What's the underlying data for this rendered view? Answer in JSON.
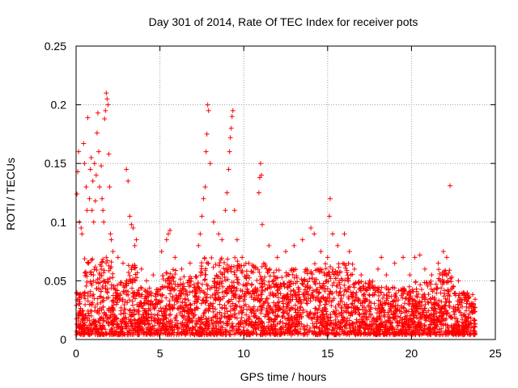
{
  "chart_data": {
    "type": "scatter",
    "title": "Day 301 of 2014, Rate Of TEC Index for receiver pots",
    "xlabel": "GPS time / hours",
    "ylabel": "ROTI / TECUs",
    "xlim": [
      0,
      25
    ],
    "ylim": [
      0,
      0.25
    ],
    "xticks": [
      0,
      5,
      10,
      15,
      20,
      25
    ],
    "xtick_labels": [
      "0",
      "5",
      "10",
      "15",
      "20",
      "25"
    ],
    "yticks": [
      0,
      0.05,
      0.1,
      0.15,
      0.2,
      0.25
    ],
    "ytick_labels": [
      "0",
      "0.05",
      "0.1",
      "0.15",
      "0.2",
      "0.25"
    ],
    "grid": true,
    "marker": "+",
    "color": "#ff0000",
    "series": [
      {
        "name": "ROTI",
        "points": [
          [
            0.05,
            0.124
          ],
          [
            0.1,
            0.143
          ],
          [
            0.15,
            0.16
          ],
          [
            0.2,
            0.1
          ],
          [
            0.3,
            0.095
          ],
          [
            0.35,
            0.09
          ],
          [
            0.45,
            0.167
          ],
          [
            0.5,
            0.15
          ],
          [
            0.6,
            0.13
          ],
          [
            0.65,
            0.11
          ],
          [
            0.7,
            0.189
          ],
          [
            0.8,
            0.12
          ],
          [
            0.85,
            0.145
          ],
          [
            0.9,
            0.155
          ],
          [
            0.95,
            0.11
          ],
          [
            1.0,
            0.135
          ],
          [
            1.05,
            0.1
          ],
          [
            1.1,
            0.15
          ],
          [
            1.15,
            0.118
          ],
          [
            1.2,
            0.14
          ],
          [
            1.25,
            0.176
          ],
          [
            1.3,
            0.193
          ],
          [
            1.35,
            0.16
          ],
          [
            1.4,
            0.13
          ],
          [
            1.5,
            0.148
          ],
          [
            1.55,
            0.12
          ],
          [
            1.6,
            0.11
          ],
          [
            1.65,
            0.1
          ],
          [
            1.7,
            0.188
          ],
          [
            1.75,
            0.195
          ],
          [
            1.8,
            0.21
          ],
          [
            1.85,
            0.205
          ],
          [
            1.9,
            0.2
          ],
          [
            1.95,
            0.158
          ],
          [
            2.0,
            0.13
          ],
          [
            2.05,
            0.09
          ],
          [
            2.1,
            0.085
          ],
          [
            2.2,
            0.075
          ],
          [
            2.5,
            0.07
          ],
          [
            2.8,
            0.065
          ],
          [
            3.0,
            0.145
          ],
          [
            3.1,
            0.135
          ],
          [
            3.2,
            0.105
          ],
          [
            3.3,
            0.098
          ],
          [
            3.4,
            0.095
          ],
          [
            3.5,
            0.08
          ],
          [
            3.6,
            0.085
          ],
          [
            3.9,
            0.06
          ],
          [
            4.2,
            0.05
          ],
          [
            4.6,
            0.055
          ],
          [
            5.1,
            0.075
          ],
          [
            5.4,
            0.085
          ],
          [
            5.5,
            0.09
          ],
          [
            5.6,
            0.093
          ],
          [
            5.9,
            0.07
          ],
          [
            6.3,
            0.06
          ],
          [
            6.8,
            0.065
          ],
          [
            7.3,
            0.08
          ],
          [
            7.4,
            0.09
          ],
          [
            7.5,
            0.105
          ],
          [
            7.6,
            0.12
          ],
          [
            7.7,
            0.13
          ],
          [
            7.75,
            0.16
          ],
          [
            7.8,
            0.175
          ],
          [
            7.85,
            0.2
          ],
          [
            7.9,
            0.195
          ],
          [
            8.0,
            0.15
          ],
          [
            8.2,
            0.1
          ],
          [
            8.5,
            0.09
          ],
          [
            8.7,
            0.085
          ],
          [
            8.9,
            0.11
          ],
          [
            9.0,
            0.125
          ],
          [
            9.1,
            0.145
          ],
          [
            9.15,
            0.16
          ],
          [
            9.2,
            0.172
          ],
          [
            9.25,
            0.18
          ],
          [
            9.3,
            0.19
          ],
          [
            9.35,
            0.195
          ],
          [
            9.45,
            0.11
          ],
          [
            9.6,
            0.085
          ],
          [
            9.9,
            0.07
          ],
          [
            10.3,
            0.065
          ],
          [
            10.9,
            0.125
          ],
          [
            10.95,
            0.138
          ],
          [
            11.0,
            0.15
          ],
          [
            11.05,
            0.14
          ],
          [
            11.1,
            0.098
          ],
          [
            11.5,
            0.08
          ],
          [
            12.0,
            0.07
          ],
          [
            12.5,
            0.075
          ],
          [
            13.0,
            0.08
          ],
          [
            13.5,
            0.085
          ],
          [
            14.0,
            0.095
          ],
          [
            14.2,
            0.09
          ],
          [
            14.6,
            0.075
          ],
          [
            15.0,
            0.07
          ],
          [
            15.1,
            0.105
          ],
          [
            15.15,
            0.12
          ],
          [
            15.3,
            0.09
          ],
          [
            15.6,
            0.08
          ],
          [
            16.0,
            0.09
          ],
          [
            16.3,
            0.075
          ],
          [
            16.6,
            0.06
          ],
          [
            17.0,
            0.055
          ],
          [
            17.5,
            0.05
          ],
          [
            18.0,
            0.06
          ],
          [
            18.2,
            0.07
          ],
          [
            18.5,
            0.055
          ],
          [
            19.0,
            0.065
          ],
          [
            19.5,
            0.07
          ],
          [
            19.9,
            0.055
          ],
          [
            20.2,
            0.07
          ],
          [
            20.5,
            0.072
          ],
          [
            20.8,
            0.06
          ],
          [
            21.2,
            0.055
          ],
          [
            21.6,
            0.065
          ],
          [
            21.9,
            0.075
          ],
          [
            22.1,
            0.07
          ],
          [
            22.3,
            0.131
          ],
          [
            22.5,
            0.045
          ],
          [
            22.8,
            0.05
          ],
          [
            23.1,
            0.04
          ],
          [
            23.4,
            0.035
          ],
          [
            23.7,
            0.03
          ]
        ],
        "bands": [
          {
            "x": [
              0.0,
              0.5
            ],
            "y": [
              0.004,
              0.04
            ]
          },
          {
            "x": [
              0.5,
              2.2
            ],
            "y": [
              0.004,
              0.07
            ]
          },
          {
            "x": [
              2.2,
              3.0
            ],
            "y": [
              0.004,
              0.05
            ]
          },
          {
            "x": [
              3.0,
              3.7
            ],
            "y": [
              0.004,
              0.065
            ]
          },
          {
            "x": [
              3.7,
              5.0
            ],
            "y": [
              0.004,
              0.045
            ]
          },
          {
            "x": [
              5.0,
              6.0
            ],
            "y": [
              0.004,
              0.06
            ]
          },
          {
            "x": [
              6.0,
              7.4
            ],
            "y": [
              0.004,
              0.055
            ]
          },
          {
            "x": [
              7.4,
              9.8
            ],
            "y": [
              0.004,
              0.07
            ]
          },
          {
            "x": [
              9.8,
              11.5
            ],
            "y": [
              0.004,
              0.065
            ]
          },
          {
            "x": [
              11.5,
              14.0
            ],
            "y": [
              0.004,
              0.06
            ]
          },
          {
            "x": [
              14.0,
              16.5
            ],
            "y": [
              0.004,
              0.065
            ]
          },
          {
            "x": [
              16.5,
              18.0
            ],
            "y": [
              0.004,
              0.05
            ]
          },
          {
            "x": [
              18.0,
              20.0
            ],
            "y": [
              0.004,
              0.045
            ]
          },
          {
            "x": [
              20.0,
              21.6
            ],
            "y": [
              0.004,
              0.05
            ]
          },
          {
            "x": [
              21.6,
              22.5
            ],
            "y": [
              0.004,
              0.06
            ]
          },
          {
            "x": [
              22.5,
              23.8
            ],
            "y": [
              0.004,
              0.04
            ]
          }
        ]
      }
    ]
  }
}
